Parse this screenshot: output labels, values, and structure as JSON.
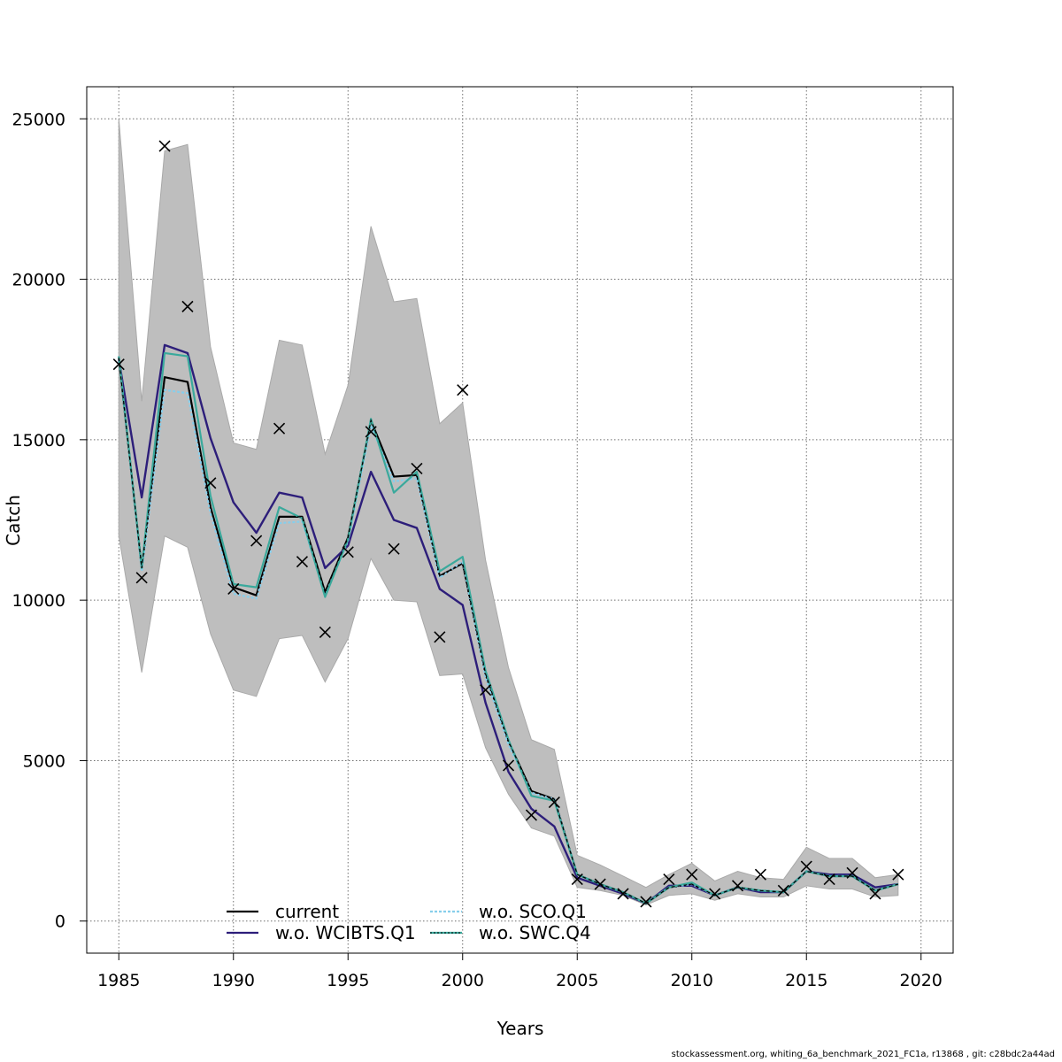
{
  "chart_data": {
    "type": "line",
    "xlabel": "Years",
    "ylabel": "Catch",
    "xlim": [
      1983.6,
      2021.4
    ],
    "ylim": [
      -1000,
      26000
    ],
    "x_ticks": [
      1985,
      1990,
      1995,
      2000,
      2005,
      2010,
      2015,
      2020
    ],
    "y_ticks": [
      0,
      5000,
      10000,
      15000,
      20000,
      25000
    ],
    "grid": true,
    "legend_position": "bottom-center",
    "years": [
      1985,
      1986,
      1987,
      1988,
      1989,
      1990,
      1991,
      1992,
      1993,
      1994,
      1995,
      1996,
      1997,
      1998,
      1999,
      2000,
      2001,
      2002,
      2003,
      2004,
      2005,
      2006,
      2007,
      2008,
      2009,
      2010,
      2011,
      2012,
      2013,
      2014,
      2015,
      2016,
      2017,
      2018,
      2019
    ],
    "band": {
      "upper": [
        25000,
        16200,
        24000,
        24200,
        17900,
        14900,
        14700,
        18100,
        17950,
        14550,
        16700,
        21650,
        19300,
        19400,
        15500,
        16150,
        11250,
        7900,
        5650,
        5350,
        2050,
        1750,
        1400,
        1050,
        1450,
        1800,
        1250,
        1550,
        1350,
        1300,
        2300,
        1950,
        1950,
        1350,
        1450
      ],
      "lower": [
        12000,
        7750,
        12000,
        11650,
        8950,
        7200,
        7000,
        8800,
        8900,
        7450,
        8800,
        11300,
        10000,
        9950,
        7650,
        7700,
        5400,
        3950,
        2900,
        2650,
        1050,
        950,
        800,
        500,
        800,
        850,
        650,
        850,
        750,
        750,
        1100,
        1000,
        1000,
        750,
        800
      ]
    },
    "observed": [
      17350,
      10700,
      24150,
      19150,
      13650,
      10350,
      11850,
      15350,
      11200,
      9000,
      11500,
      15250,
      11600,
      14100,
      8850,
      16550,
      7200,
      4850,
      3300,
      3700,
      1300,
      1150,
      850,
      600,
      1300,
      1450,
      850,
      1100,
      1450,
      950,
      1700,
      1300,
      1500,
      850,
      1450
    ],
    "series": [
      {
        "name": "current",
        "color": "#000000",
        "values": [
          17550,
          11000,
          16950,
          16800,
          12900,
          10400,
          10150,
          12600,
          12600,
          10250,
          11950,
          15600,
          13850,
          13900,
          10750,
          11150,
          7700,
          5600,
          4050,
          3800,
          1450,
          1150,
          900,
          550,
          1050,
          1150,
          800,
          1050,
          950,
          900,
          1550,
          1400,
          1400,
          950,
          1150
        ]
      },
      {
        "name": "w.o. WCIBTS.Q1",
        "color": "#2d1e7a",
        "values": [
          17500,
          13200,
          17950,
          17700,
          15050,
          13050,
          12100,
          13350,
          13200,
          11000,
          11700,
          14000,
          12500,
          12250,
          10350,
          9850,
          6800,
          4650,
          3500,
          2950,
          1350,
          1100,
          850,
          550,
          1100,
          1100,
          800,
          1050,
          900,
          900,
          1550,
          1450,
          1450,
          1050,
          1150
        ]
      },
      {
        "name": "w.o. SCO.Q1",
        "color": "#87ceeb",
        "values": [
          17600,
          10900,
          16550,
          16450,
          12700,
          10200,
          10050,
          12400,
          12450,
          10150,
          11850,
          15450,
          13700,
          13800,
          10700,
          11200,
          7600,
          5500,
          4000,
          3800,
          1450,
          1150,
          900,
          550,
          1050,
          1150,
          800,
          1050,
          950,
          900,
          1550,
          1400,
          1400,
          950,
          1150
        ]
      },
      {
        "name": "w.o. SWC.Q4",
        "color": "#3aa99c",
        "values": [
          17600,
          11000,
          17700,
          17600,
          13250,
          10500,
          10400,
          12900,
          12550,
          10100,
          11900,
          15650,
          13350,
          14000,
          10900,
          11350,
          7800,
          5650,
          3900,
          3750,
          1450,
          1150,
          900,
          550,
          1050,
          1200,
          800,
          1050,
          950,
          900,
          1550,
          1400,
          1400,
          950,
          1150
        ]
      }
    ]
  },
  "footer_text": "stockassessment.org, whiting_6a_benchmark_2021_FC1a, r13868 , git: c28bdc2a44ad",
  "colors": {
    "band": "#bebebe",
    "band_edge": "#a9a9a9",
    "grid": "#6e6e6e",
    "observed_marker": "#000000"
  }
}
